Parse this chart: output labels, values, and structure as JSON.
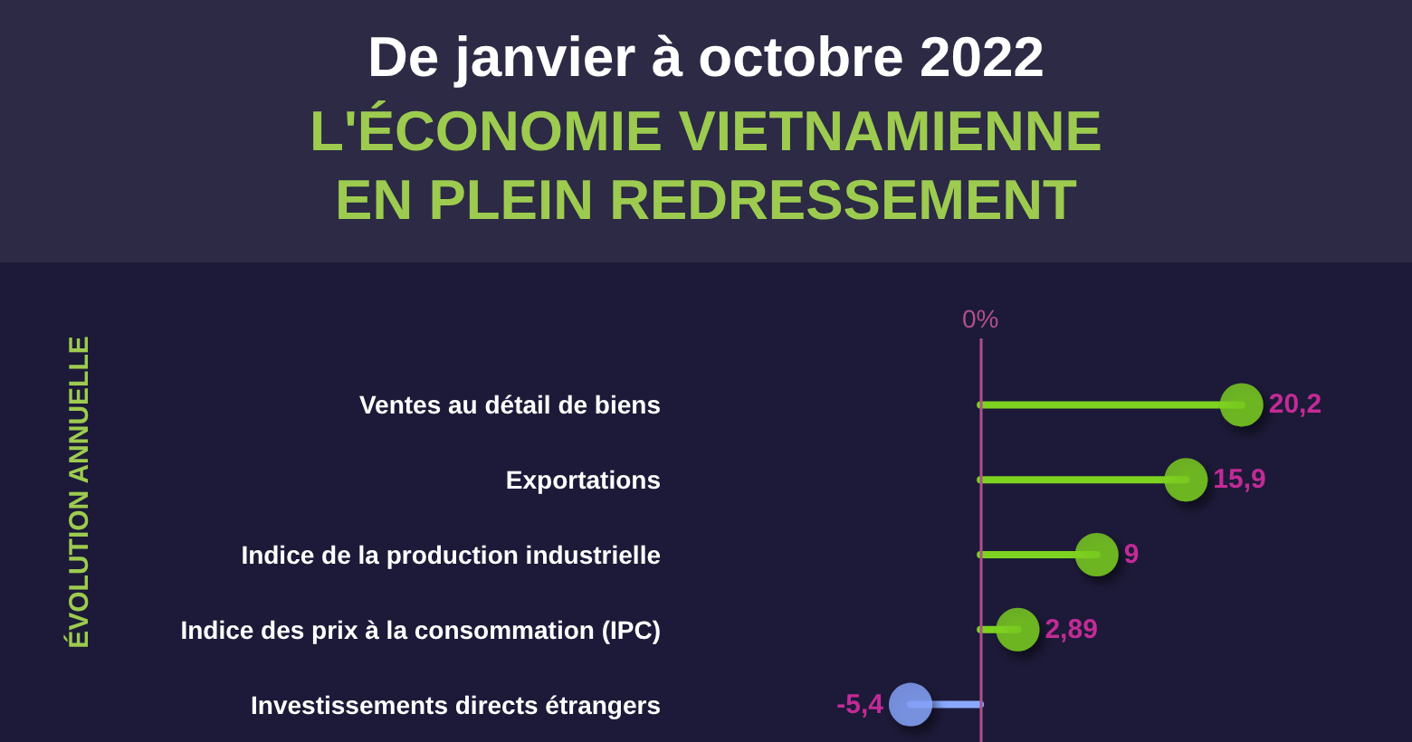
{
  "chart_data": {
    "type": "lollipop",
    "orientation": "horizontal",
    "title": "De janvier à octobre 2022",
    "subtitle": "L'ÉCONOMIE VIETNAMIENNE EN PLEIN REDRESSEMENT",
    "ylabel": "ÉVOLUTION ANNUELLE",
    "categories": [
      "Ventes au détail de biens",
      "Exportations",
      "Indice de la production industrielle",
      "Indice des prix à la consommation (IPC)",
      "Investissements directs étrangers"
    ],
    "values": [
      20.2,
      15.9,
      9,
      2.89,
      -5.4
    ],
    "value_labels": [
      "20,2",
      "15,9",
      "9",
      "2,89",
      "-5,4"
    ],
    "colors": [
      "#7ed321",
      "#7ed321",
      "#7ed321",
      "#7ed321",
      "#8aa8ff"
    ],
    "ref_lines": [
      {
        "axis": "x",
        "value": 0,
        "label": "0%",
        "color": "#b0508a"
      }
    ],
    "tick_labels": "y"
  }
}
